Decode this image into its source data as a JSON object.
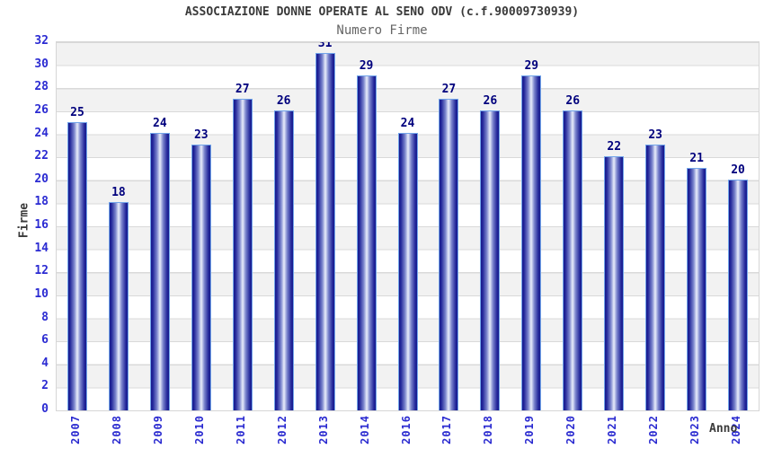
{
  "chart_data": {
    "type": "bar",
    "title": "ASSOCIAZIONE DONNE OPERATE AL SENO ODV (c.f.90009730939)",
    "subtitle": "Numero Firme",
    "xlabel": "Anno",
    "ylabel": "Firme",
    "categories": [
      "2007",
      "2008",
      "2009",
      "2010",
      "2011",
      "2012",
      "2013",
      "2014",
      "2016",
      "2017",
      "2018",
      "2019",
      "2020",
      "2021",
      "2022",
      "2023",
      "2024"
    ],
    "values": [
      25,
      18,
      24,
      23,
      27,
      26,
      31,
      29,
      24,
      27,
      26,
      29,
      26,
      22,
      23,
      21,
      20
    ],
    "ylim": [
      0,
      32
    ],
    "ytick_step": 2,
    "grid": true,
    "legend_position": "none",
    "band_fill": "alternating horizontal bands",
    "colors": {
      "bar_edge_dark": "#171a8d",
      "bar_center_highlight": "#e9edfb",
      "bar_border": "#72a5ea",
      "value_label": "#00007d",
      "tick_label": "#2b2bd2",
      "axis_title": "#3a3a3a",
      "title_text": "#3a3a3a",
      "subtitle_text": "#666666",
      "band_gray": "#f2f2f2",
      "gridline": "#d9d9d9",
      "background": "#ffffff"
    }
  }
}
